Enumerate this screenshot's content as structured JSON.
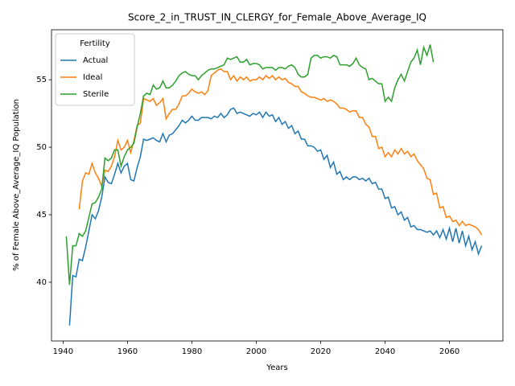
{
  "chart_data": {
    "type": "line",
    "title": "Score_2_in_TRUST_IN_CLERGY_for_Female_Above_Average_IQ",
    "xlabel": "Years",
    "ylabel": "% of Female Above_Average_IQ Population",
    "legend_title": "Fertility",
    "legend": "upper left",
    "grid": false,
    "xlim": [
      1936.4,
      2076.6
    ],
    "ylim": [
      35.65,
      58.7
    ],
    "xticks": [
      1940,
      1960,
      1980,
      2000,
      2020,
      2040,
      2060
    ],
    "yticks": [
      40,
      45,
      50,
      55
    ],
    "x": [
      1941,
      1942,
      1943,
      1944,
      1945,
      1946,
      1947,
      1948,
      1949,
      1950,
      1951,
      1952,
      1953,
      1954,
      1955,
      1956,
      1957,
      1958,
      1959,
      1960,
      1961,
      1962,
      1963,
      1964,
      1965,
      1966,
      1967,
      1968,
      1969,
      1970,
      1971,
      1972,
      1973,
      1974,
      1975,
      1976,
      1977,
      1978,
      1979,
      1980,
      1981,
      1982,
      1983,
      1984,
      1985,
      1986,
      1987,
      1988,
      1989,
      1990,
      1991,
      1992,
      1993,
      1994,
      1995,
      1996,
      1997,
      1998,
      1999,
      2000,
      2001,
      2002,
      2003,
      2004,
      2005,
      2006,
      2007,
      2008,
      2009,
      2010,
      2011,
      2012,
      2013,
      2014,
      2015,
      2016,
      2017,
      2018,
      2019,
      2020,
      2021,
      2022,
      2023,
      2024,
      2025,
      2026,
      2027,
      2028,
      2029,
      2030,
      2031,
      2032,
      2033,
      2034,
      2035,
      2036,
      2037,
      2038,
      2039,
      2040,
      2041,
      2042,
      2043,
      2044,
      2045,
      2046,
      2047,
      2048,
      2049,
      2050,
      2051,
      2052,
      2053,
      2054,
      2055,
      2056,
      2057,
      2058,
      2059,
      2060,
      2061,
      2062,
      2063,
      2064,
      2065,
      2066,
      2067,
      2068,
      2069,
      2070
    ],
    "series": [
      {
        "name": "Actual",
        "color": "#1f77b4",
        "values": [
          null,
          36.8,
          40.5,
          40.4,
          41.7,
          41.6,
          42.6,
          43.8,
          45.0,
          44.7,
          45.3,
          46.3,
          47.8,
          47.4,
          47.3,
          48.0,
          48.8,
          48.1,
          48.6,
          48.8,
          47.6,
          47.5,
          48.5,
          49.3,
          50.6,
          50.5,
          50.6,
          50.7,
          50.5,
          50.4,
          51.0,
          50.4,
          50.9,
          51.0,
          51.3,
          51.6,
          52.0,
          51.8,
          52.0,
          52.3,
          52.0,
          52.0,
          52.2,
          52.2,
          52.2,
          52.1,
          52.3,
          52.2,
          52.5,
          52.2,
          52.4,
          52.8,
          52.9,
          52.5,
          52.6,
          52.5,
          52.4,
          52.3,
          52.5,
          52.4,
          52.6,
          52.2,
          52.6,
          52.3,
          52.4,
          51.9,
          52.2,
          51.7,
          51.9,
          51.4,
          51.6,
          51.0,
          51.2,
          50.6,
          50.6,
          50.1,
          50.1,
          50.0,
          49.7,
          49.8,
          49.1,
          49.4,
          48.5,
          48.9,
          48.0,
          48.2,
          47.6,
          47.8,
          47.6,
          47.8,
          47.8,
          47.6,
          47.7,
          47.5,
          47.7,
          47.3,
          47.4,
          46.9,
          46.9,
          46.2,
          46.3,
          45.5,
          45.6,
          45.0,
          45.2,
          44.6,
          44.8,
          44.1,
          44.2,
          43.9,
          43.9,
          43.8,
          43.7,
          43.8,
          43.5,
          43.8,
          43.3,
          43.9,
          43.2,
          44.0,
          43.0,
          44.0,
          42.9,
          43.8,
          42.7,
          43.4,
          42.4,
          43.0,
          42.1,
          42.7
        ]
      },
      {
        "name": "Ideal",
        "color": "#ff7f0e",
        "values": [
          null,
          null,
          null,
          null,
          45.4,
          47.5,
          48.1,
          48.0,
          48.8,
          48.1,
          47.7,
          47.1,
          48.3,
          48.2,
          48.6,
          49.3,
          50.5,
          49.8,
          50.0,
          50.5,
          49.6,
          50.5,
          51.6,
          51.8,
          53.6,
          53.5,
          53.4,
          53.6,
          53.1,
          53.3,
          53.6,
          52.1,
          52.5,
          52.8,
          52.8,
          53.2,
          53.8,
          53.8,
          54.0,
          54.3,
          54.1,
          54.0,
          54.1,
          53.9,
          54.2,
          55.3,
          55.5,
          55.7,
          55.8,
          55.6,
          55.6,
          55.0,
          55.3,
          54.9,
          55.2,
          55.0,
          55.2,
          54.9,
          55.0,
          55.0,
          55.2,
          55.0,
          55.3,
          55.1,
          55.3,
          55.0,
          55.2,
          55.0,
          55.1,
          54.8,
          54.7,
          54.5,
          54.5,
          54.1,
          54.0,
          53.8,
          53.7,
          53.7,
          53.6,
          53.5,
          53.6,
          53.4,
          53.5,
          53.4,
          53.2,
          52.9,
          52.9,
          52.8,
          52.6,
          52.7,
          52.7,
          52.2,
          52.2,
          51.7,
          51.5,
          50.8,
          50.8,
          49.9,
          50.0,
          49.3,
          49.6,
          49.3,
          49.8,
          49.5,
          49.9,
          49.5,
          49.7,
          49.3,
          49.5,
          49.0,
          48.7,
          48.4,
          47.7,
          47.6,
          46.5,
          46.6,
          45.5,
          45.6,
          44.8,
          44.9,
          44.5,
          44.6,
          44.2,
          44.5,
          44.2,
          44.3,
          44.2,
          44.1,
          43.9,
          43.5
        ]
      },
      {
        "name": "Sterile",
        "color": "#2ca02c",
        "values": [
          43.4,
          39.8,
          42.7,
          42.7,
          43.6,
          43.4,
          43.8,
          44.8,
          45.8,
          45.9,
          46.3,
          46.9,
          49.2,
          49.0,
          49.2,
          49.8,
          49.8,
          48.6,
          49.3,
          49.8,
          50.0,
          50.3,
          51.5,
          52.5,
          53.8,
          54.0,
          53.9,
          54.6,
          54.3,
          54.4,
          54.9,
          54.4,
          54.4,
          54.6,
          54.9,
          55.3,
          55.5,
          55.6,
          55.4,
          55.3,
          55.3,
          55.0,
          55.3,
          55.5,
          55.7,
          55.8,
          55.8,
          55.9,
          56.0,
          56.1,
          56.6,
          56.5,
          56.6,
          56.7,
          56.3,
          56.3,
          56.5,
          56.1,
          56.2,
          56.2,
          56.1,
          55.8,
          55.9,
          55.9,
          55.9,
          55.7,
          55.9,
          55.9,
          55.8,
          56.0,
          56.1,
          55.9,
          55.4,
          55.2,
          55.2,
          55.4,
          56.6,
          56.8,
          56.8,
          56.6,
          56.7,
          56.7,
          56.6,
          56.8,
          56.7,
          56.1,
          56.1,
          56.1,
          56.0,
          56.2,
          56.6,
          56.1,
          55.9,
          55.8,
          55.0,
          55.1,
          54.9,
          54.7,
          54.7,
          53.4,
          53.7,
          53.4,
          54.4,
          55.0,
          55.4,
          54.9,
          55.6,
          56.3,
          56.6,
          57.2,
          56.1,
          57.4,
          56.8,
          57.6,
          56.3,
          null,
          null,
          null,
          null,
          null,
          null,
          null,
          null,
          null,
          null,
          null,
          null,
          null,
          null,
          null
        ]
      }
    ]
  }
}
